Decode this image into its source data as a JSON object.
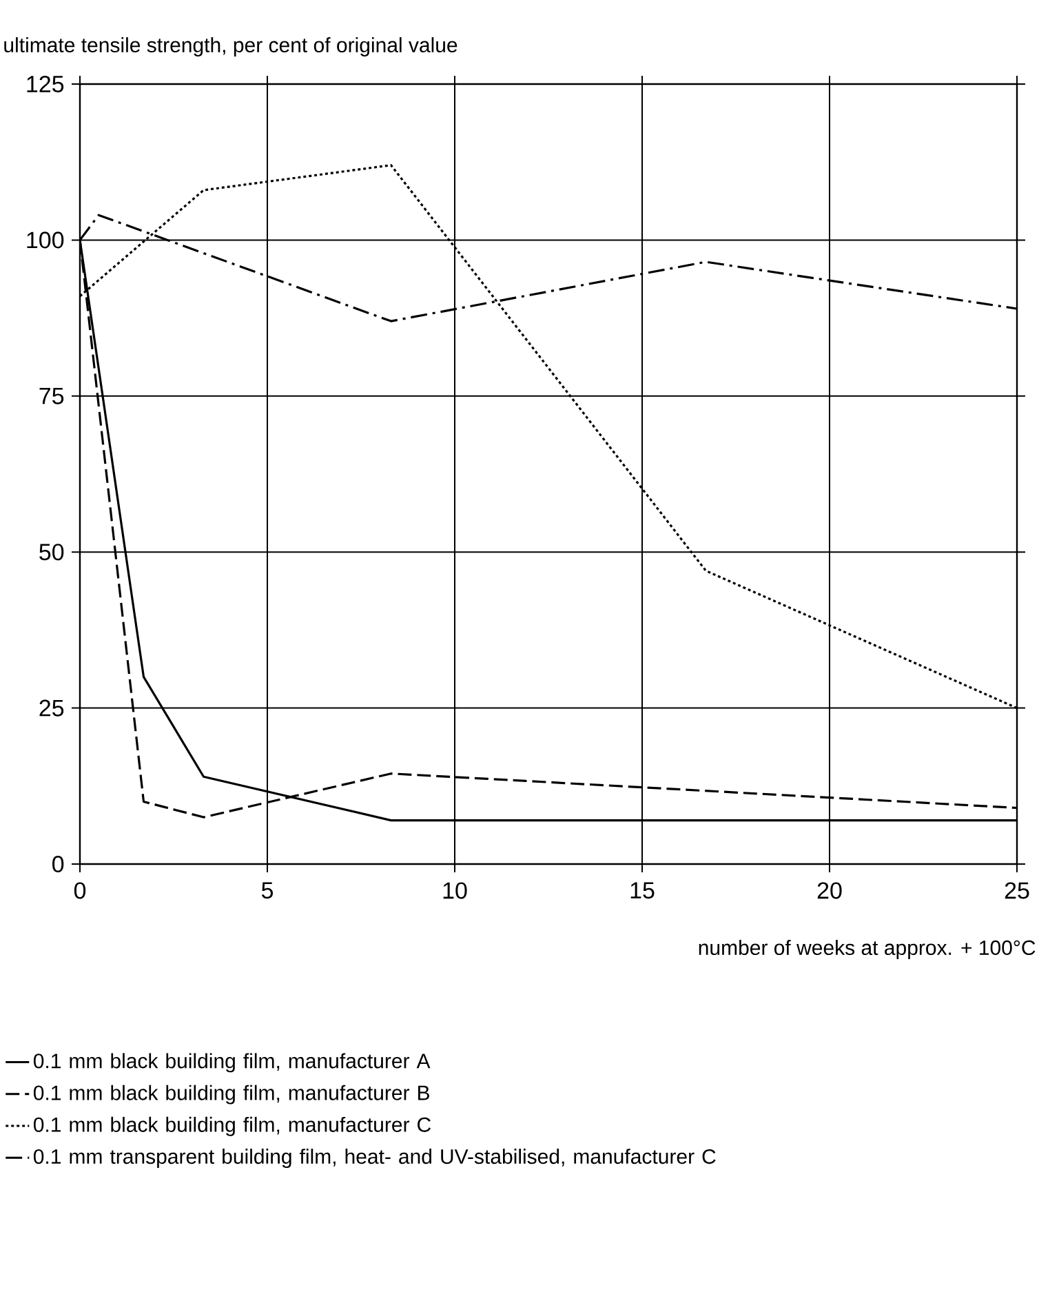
{
  "chart_data": {
    "type": "line",
    "ylabel": "ultimate tensile strength, per cent of original value",
    "xlabel": "number of weeks at approx. + 100°C",
    "xlim": [
      0,
      25
    ],
    "xticks": [
      0,
      5,
      10,
      15,
      20,
      25
    ],
    "ylim": [
      0,
      125
    ],
    "yticks": [
      0,
      25,
      50,
      75,
      100,
      125
    ],
    "grid": true,
    "legend": "bottom",
    "series": [
      {
        "name": "0.1 mm black building film, manufacturer A",
        "color": "#000000",
        "line_style": "solid",
        "x": [
          0,
          1.7,
          3.3,
          8.3,
          25
        ],
        "values": [
          100,
          30,
          14,
          7,
          7
        ]
      },
      {
        "name": "0.1 mm black building film, manufacturer B",
        "color": "#000000",
        "line_style": "dashed",
        "x": [
          0,
          1.7,
          3.3,
          8.3,
          25
        ],
        "values": [
          100,
          10,
          7.5,
          14.5,
          9
        ]
      },
      {
        "name": "0.1 mm black building film, manufacturer C",
        "color": "#000000",
        "line_style": "dotted",
        "x": [
          0,
          3.3,
          8.3,
          16.7,
          25
        ],
        "values": [
          91,
          108,
          112,
          47,
          25
        ]
      },
      {
        "name": "0.1 mm transparent building film, heat- and UV-stabilised, manufacturer C",
        "color": "#000000",
        "line_style": "dashdot",
        "x": [
          0,
          0.5,
          8.3,
          16.7,
          25
        ],
        "values": [
          100,
          104,
          87,
          96.5,
          89
        ]
      }
    ]
  }
}
